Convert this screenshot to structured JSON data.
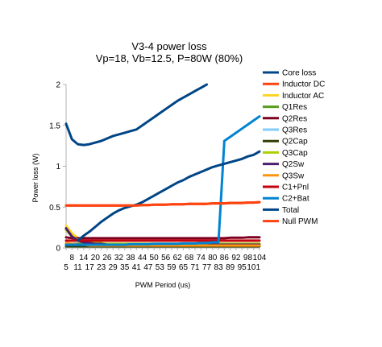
{
  "chart_data": {
    "type": "line",
    "title": "V3-4 power loss",
    "subtitle": "Vp=18, Vb=12.5, P=80W (80%)",
    "xlabel": "PWM Period (us)",
    "ylabel": "Power loss (W)",
    "ylim": [
      0,
      2
    ],
    "y_ticks": [
      "0",
      "0.5",
      "1",
      "1.5",
      "2"
    ],
    "x_ticks_upper": [
      "8",
      "14",
      "20",
      "26",
      "32",
      "38",
      "44",
      "50",
      "56",
      "62",
      "68",
      "74",
      "80",
      "86",
      "92",
      "98",
      "104"
    ],
    "x_ticks_lower": [
      "5",
      "11",
      "17",
      "23",
      "29",
      "35",
      "41",
      "47",
      "53",
      "59",
      "65",
      "71",
      "77",
      "83",
      "89",
      "95",
      "101"
    ],
    "grid": false,
    "legend_position": "right",
    "x": [
      5,
      8,
      11,
      14,
      17,
      20,
      23,
      26,
      29,
      32,
      35,
      38,
      41,
      44,
      47,
      50,
      53,
      56,
      59,
      62,
      65,
      68,
      71,
      74,
      77,
      80,
      83,
      86,
      89,
      92,
      95,
      98,
      101,
      104
    ],
    "series": [
      {
        "name": "Core loss",
        "color": "#004586",
        "values": [
          1.52,
          1.33,
          1.27,
          1.26,
          1.27,
          1.29,
          1.31,
          1.34,
          1.37,
          1.39,
          1.41,
          1.43,
          1.45,
          1.5,
          1.55,
          1.6,
          1.65,
          1.7,
          1.75,
          1.8,
          1.84,
          1.88,
          1.92,
          1.96,
          2.0,
          null,
          null,
          null,
          null,
          null,
          null,
          null,
          null,
          null
        ]
      },
      {
        "name": "Inductor DC",
        "color": "#ff420e",
        "values": [
          0.52,
          0.52,
          0.52,
          0.52,
          0.52,
          0.52,
          0.52,
          0.52,
          0.52,
          0.52,
          0.52,
          0.52,
          0.52,
          0.525,
          0.525,
          0.53,
          0.53,
          0.53,
          0.535,
          0.535,
          0.535,
          0.54,
          0.54,
          0.54,
          0.54,
          0.545,
          0.545,
          0.545,
          0.55,
          0.55,
          0.55,
          0.555,
          0.555,
          0.56
        ]
      },
      {
        "name": "Inductor AC",
        "color": "#ffd320",
        "values": [
          0.27,
          0.18,
          0.12,
          0.09,
          0.07,
          0.06,
          0.05,
          0.045,
          0.04,
          0.035,
          0.03,
          0.03,
          0.03,
          0.03,
          0.03,
          0.03,
          0.03,
          0.03,
          0.03,
          0.03,
          0.03,
          0.03,
          0.03,
          0.03,
          0.03,
          0.03,
          0.03,
          0.03,
          0.03,
          0.03,
          0.03,
          0.03,
          0.03,
          0.03
        ]
      },
      {
        "name": "Q1Res",
        "color": "#579d1c",
        "values": [
          0.05,
          0.05,
          0.05,
          0.05,
          0.05,
          0.05,
          0.05,
          0.05,
          0.05,
          0.05,
          0.05,
          0.05,
          0.05,
          0.05,
          0.05,
          0.05,
          0.05,
          0.05,
          0.05,
          0.05,
          0.05,
          0.05,
          0.05,
          0.05,
          0.05,
          0.05,
          0.05,
          0.05,
          0.05,
          0.05,
          0.05,
          0.05,
          0.05,
          0.05
        ]
      },
      {
        "name": "Q2Res",
        "color": "#7e0021",
        "values": [
          0.13,
          0.12,
          0.12,
          0.12,
          0.12,
          0.12,
          0.12,
          0.12,
          0.12,
          0.12,
          0.12,
          0.12,
          0.12,
          0.12,
          0.12,
          0.12,
          0.12,
          0.12,
          0.12,
          0.12,
          0.12,
          0.12,
          0.12,
          0.12,
          0.12,
          0.12,
          0.12,
          0.12,
          0.125,
          0.125,
          0.125,
          0.13,
          0.13,
          0.13
        ]
      },
      {
        "name": "Q3Res",
        "color": "#83caff",
        "values": [
          0.04,
          0.04,
          0.04,
          0.04,
          0.04,
          0.04,
          0.04,
          0.04,
          0.04,
          0.04,
          0.04,
          0.04,
          0.04,
          0.04,
          0.04,
          0.04,
          0.04,
          0.04,
          0.04,
          0.04,
          0.04,
          0.04,
          0.04,
          0.04,
          0.04,
          0.04,
          0.04,
          0.04,
          0.04,
          0.04,
          0.04,
          0.04,
          0.04,
          0.04
        ]
      },
      {
        "name": "Q2Cap",
        "color": "#314004",
        "values": [
          0.02,
          0.02,
          0.02,
          0.02,
          0.02,
          0.02,
          0.02,
          0.02,
          0.02,
          0.02,
          0.02,
          0.02,
          0.02,
          0.02,
          0.02,
          0.02,
          0.02,
          0.02,
          0.02,
          0.02,
          0.02,
          0.02,
          0.02,
          0.02,
          0.02,
          0.02,
          0.02,
          0.02,
          0.02,
          0.02,
          0.02,
          0.02,
          0.02,
          0.02
        ]
      },
      {
        "name": "Q3Cap",
        "color": "#aecf00",
        "values": [
          0.22,
          0.14,
          0.1,
          0.08,
          0.07,
          0.06,
          0.06,
          0.05,
          0.05,
          0.05,
          0.05,
          0.05,
          0.05,
          0.05,
          0.05,
          0.05,
          0.05,
          0.05,
          0.05,
          0.05,
          0.05,
          0.05,
          0.05,
          0.05,
          0.05,
          0.05,
          0.05,
          0.05,
          0.05,
          0.05,
          0.05,
          0.05,
          0.05,
          0.05
        ]
      },
      {
        "name": "Q2Sw",
        "color": "#4b1f6f",
        "values": [
          0.24,
          0.14,
          0.09,
          0.07,
          0.06,
          0.05,
          0.05,
          0.04,
          0.04,
          0.04,
          0.04,
          0.04,
          0.04,
          0.04,
          0.04,
          0.04,
          0.04,
          0.04,
          0.04,
          0.04,
          0.04,
          0.04,
          0.04,
          0.04,
          0.04,
          0.04,
          0.04,
          0.04,
          0.04,
          0.04,
          0.04,
          0.04,
          0.04,
          0.04
        ]
      },
      {
        "name": "Q3Sw",
        "color": "#ff950e",
        "values": [
          0.06,
          0.05,
          0.04,
          0.04,
          0.03,
          0.03,
          0.03,
          0.03,
          0.03,
          0.03,
          0.03,
          0.03,
          0.03,
          0.03,
          0.03,
          0.03,
          0.03,
          0.03,
          0.03,
          0.03,
          0.03,
          0.03,
          0.03,
          0.03,
          0.03,
          0.03,
          0.03,
          0.03,
          0.03,
          0.03,
          0.03,
          0.03,
          0.03,
          0.03
        ]
      },
      {
        "name": "C1+Pnl",
        "color": "#c5000b",
        "values": [
          0.09,
          0.09,
          0.09,
          0.09,
          0.09,
          0.09,
          0.09,
          0.09,
          0.09,
          0.09,
          0.09,
          0.09,
          0.09,
          0.09,
          0.09,
          0.09,
          0.09,
          0.09,
          0.09,
          0.09,
          0.09,
          0.09,
          0.09,
          0.09,
          0.09,
          0.09,
          0.09,
          0.09,
          0.09,
          0.09,
          0.09,
          0.09,
          0.09,
          0.09
        ]
      },
      {
        "name": "C2+Bat",
        "color": "#0084d1",
        "values": [
          0.04,
          0.04,
          0.04,
          0.04,
          0.04,
          0.04,
          0.04,
          0.04,
          0.04,
          0.04,
          0.04,
          0.045,
          0.045,
          0.045,
          0.045,
          0.05,
          0.05,
          0.05,
          0.05,
          0.05,
          0.055,
          0.055,
          0.055,
          0.06,
          0.06,
          0.07,
          0.07,
          1.31,
          1.36,
          1.41,
          1.46,
          1.51,
          1.56,
          1.61
        ]
      },
      {
        "name": "Total",
        "color": "#004586",
        "values": [
          null,
          null,
          0.09,
          0.15,
          0.2,
          0.26,
          0.32,
          0.37,
          0.42,
          0.46,
          0.49,
          0.51,
          0.53,
          0.56,
          0.6,
          0.64,
          0.68,
          0.72,
          0.76,
          0.8,
          0.83,
          0.87,
          0.9,
          0.93,
          0.96,
          0.99,
          1.01,
          1.03,
          1.05,
          1.07,
          1.09,
          1.12,
          1.14,
          1.18
        ]
      },
      {
        "name": "Null PWM",
        "color": "#ff420e",
        "values": [
          0.52,
          0.52,
          0.52,
          0.52,
          0.52,
          0.52,
          0.52,
          0.52,
          0.52,
          0.52,
          0.52,
          0.52,
          0.52,
          0.525,
          0.525,
          0.53,
          0.53,
          0.53,
          0.535,
          0.535,
          0.535,
          0.54,
          0.54,
          0.54,
          0.54,
          0.545,
          0.545,
          0.545,
          0.55,
          0.55,
          0.55,
          0.555,
          0.555,
          0.56
        ]
      }
    ]
  }
}
